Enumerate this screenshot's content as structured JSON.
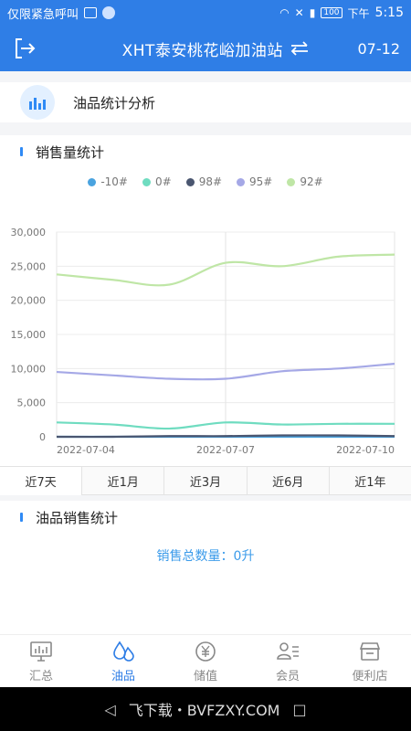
{
  "status_bar": {
    "left_text": "仅限紧急呼叫",
    "battery": "100",
    "time_prefix": "下午",
    "time": "5:15"
  },
  "header": {
    "title": "XHT泰安桃花峪加油站",
    "date": "07-12"
  },
  "section": {
    "label": "油品统计分析"
  },
  "sales_volume": {
    "title": "销售量统计"
  },
  "chart_data": {
    "type": "line",
    "x": [
      "2022-07-04",
      "2022-07-05",
      "2022-07-06",
      "2022-07-07",
      "2022-07-08",
      "2022-07-09",
      "2022-07-10"
    ],
    "x_tick_labels": [
      "2022-07-04",
      "2022-07-07",
      "2022-07-10"
    ],
    "ylim": [
      0,
      30000
    ],
    "y_ticks": [
      0,
      5000,
      10000,
      15000,
      20000,
      25000,
      30000
    ],
    "y_tick_labels": [
      "0",
      "5,000",
      "10,000",
      "15,000",
      "20,000",
      "25,000",
      "30,000"
    ],
    "grid": true,
    "legend": "top-center",
    "series": [
      {
        "name": "-10#",
        "color": "#4aa3df",
        "values": [
          0,
          0,
          0,
          0,
          0,
          0,
          0
        ]
      },
      {
        "name": "0#",
        "color": "#6fdcc0",
        "values": [
          2100,
          1800,
          1200,
          2100,
          1800,
          1900,
          1900
        ]
      },
      {
        "name": "98#",
        "color": "#4a5670",
        "values": [
          0,
          0,
          100,
          100,
          200,
          200,
          100
        ]
      },
      {
        "name": "95#",
        "color": "#a5a8e6",
        "values": [
          9500,
          9000,
          8500,
          8500,
          9600,
          10000,
          10700
        ]
      },
      {
        "name": "92#",
        "color": "#bfe6a6",
        "values": [
          23800,
          23000,
          22300,
          25500,
          25000,
          26400,
          26700
        ]
      }
    ]
  },
  "range_tabs": [
    "近7天",
    "近1月",
    "近3月",
    "近6月",
    "近1年"
  ],
  "oil_sales": {
    "title": "油品销售统计",
    "total_label": "销售总数量：",
    "total_value": "0升"
  },
  "tabbar": {
    "items": [
      "汇总",
      "油品",
      "储值",
      "会员",
      "便利店"
    ]
  },
  "android_nav": {
    "watermark": "飞下载・BVFZXY.COM"
  }
}
